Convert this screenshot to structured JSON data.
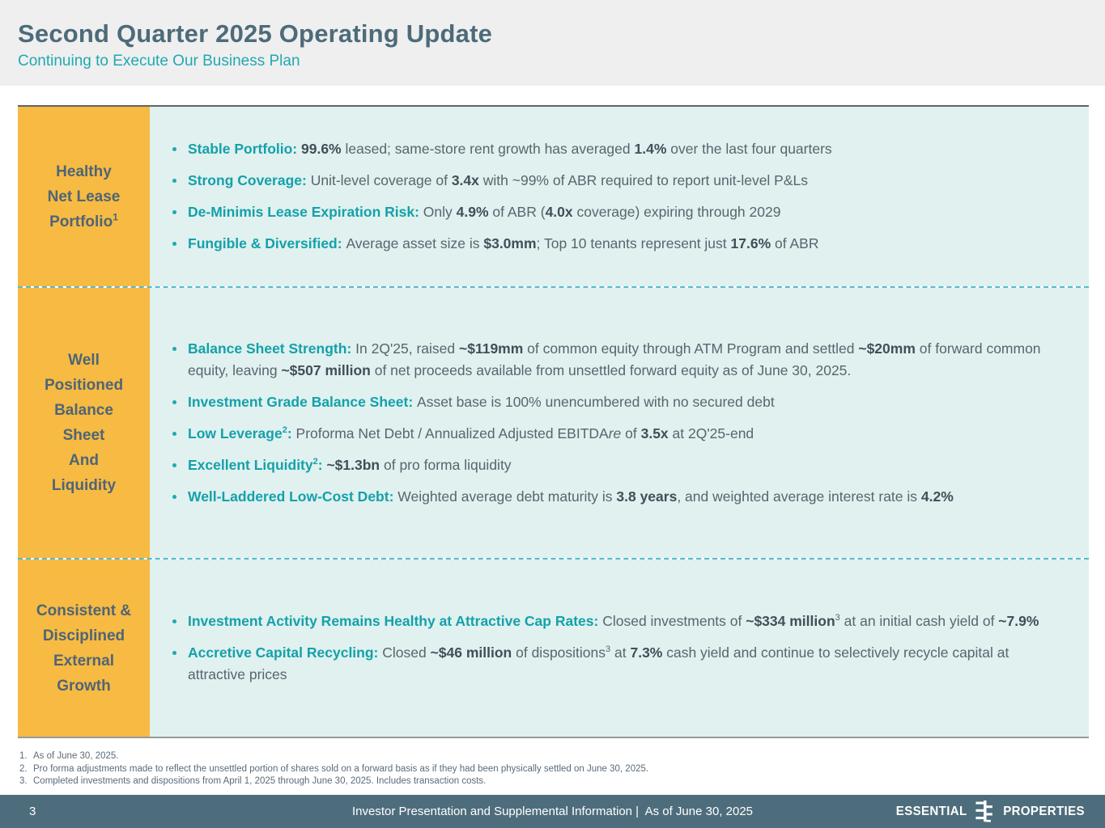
{
  "header": {
    "title": "Second Quarter 2025 Operating Update",
    "subtitle": "Continuing to Execute Our Business Plan"
  },
  "rows": [
    {
      "label_lines": [
        "Healthy",
        "Net Lease",
        "Portfolio"
      ],
      "label_sup": "1",
      "separator_above": false,
      "bullets": [
        {
          "segments": [
            {
              "style": "lead",
              "text": "Stable Portfolio: "
            },
            {
              "style": "bold",
              "text": "99.6%"
            },
            {
              "style": "normal",
              "text": " leased; same-store rent growth has averaged "
            },
            {
              "style": "bold",
              "text": "1.4%"
            },
            {
              "style": "normal",
              "text": " over the last four quarters"
            }
          ]
        },
        {
          "segments": [
            {
              "style": "lead",
              "text": "Strong Coverage: "
            },
            {
              "style": "normal",
              "text": "Unit-level coverage of "
            },
            {
              "style": "bold",
              "text": "3.4x"
            },
            {
              "style": "normal",
              "text": " with ~99% of ABR required to report unit-level P&Ls"
            }
          ]
        },
        {
          "segments": [
            {
              "style": "lead",
              "text": "De-Minimis Lease Expiration Risk: "
            },
            {
              "style": "normal",
              "text": "Only "
            },
            {
              "style": "bold",
              "text": "4.9%"
            },
            {
              "style": "normal",
              "text": " of ABR ("
            },
            {
              "style": "bold",
              "text": "4.0x"
            },
            {
              "style": "normal",
              "text": " coverage) expiring through 2029"
            }
          ]
        },
        {
          "segments": [
            {
              "style": "lead",
              "text": "Fungible & Diversified: "
            },
            {
              "style": "normal",
              "text": "Average asset size is "
            },
            {
              "style": "bold",
              "text": "$3.0mm"
            },
            {
              "style": "normal",
              "text": "; Top 10 tenants represent just "
            },
            {
              "style": "bold",
              "text": "17.6%"
            },
            {
              "style": "normal",
              "text": " of ABR"
            }
          ]
        }
      ]
    },
    {
      "label_lines": [
        "Well",
        "Positioned",
        "Balance",
        "Sheet",
        "And",
        "Liquidity"
      ],
      "label_sup": "",
      "separator_above": true,
      "bullets": [
        {
          "segments": [
            {
              "style": "lead",
              "text": "Balance Sheet Strength: "
            },
            {
              "style": "normal",
              "text": "In 2Q'25, raised "
            },
            {
              "style": "bold",
              "text": "~$119mm"
            },
            {
              "style": "normal",
              "text": " of common equity through ATM Program and settled "
            },
            {
              "style": "bold",
              "text": "~$20mm"
            },
            {
              "style": "normal",
              "text": " of forward common equity, leaving "
            },
            {
              "style": "bold",
              "text": "~$507 million"
            },
            {
              "style": "normal",
              "text": " of net proceeds available from unsettled forward equity as of June 30, 2025."
            }
          ]
        },
        {
          "segments": [
            {
              "style": "lead",
              "text": "Investment Grade Balance Sheet: "
            },
            {
              "style": "normal",
              "text": "Asset base is 100% unencumbered with no secured debt"
            }
          ]
        },
        {
          "segments": [
            {
              "style": "lead",
              "text": "Low Leverage"
            },
            {
              "style": "leadsup",
              "text": "2"
            },
            {
              "style": "lead",
              "text": ": "
            },
            {
              "style": "normal",
              "text": "Proforma Net Debt / Annualized Adjusted EBITDA"
            },
            {
              "style": "italic",
              "text": "re"
            },
            {
              "style": "normal",
              "text": " of "
            },
            {
              "style": "bold",
              "text": "3.5x"
            },
            {
              "style": "normal",
              "text": " at 2Q'25-end"
            }
          ]
        },
        {
          "segments": [
            {
              "style": "lead",
              "text": "Excellent Liquidity"
            },
            {
              "style": "leadsup",
              "text": "2"
            },
            {
              "style": "lead",
              "text": ": "
            },
            {
              "style": "bold",
              "text": "~$1.3bn"
            },
            {
              "style": "normal",
              "text": " of pro forma liquidity"
            }
          ]
        },
        {
          "segments": [
            {
              "style": "lead",
              "text": "Well-Laddered Low-Cost Debt: "
            },
            {
              "style": "normal",
              "text": "Weighted average debt maturity is "
            },
            {
              "style": "bold",
              "text": "3.8 years"
            },
            {
              "style": "normal",
              "text": ", and weighted average interest rate is "
            },
            {
              "style": "bold",
              "text": "4.2%"
            }
          ]
        }
      ]
    },
    {
      "label_lines": [
        "Consistent &",
        "Disciplined",
        "External",
        "Growth"
      ],
      "label_sup": "",
      "separator_above": true,
      "bullets": [
        {
          "segments": [
            {
              "style": "lead",
              "text": "Investment Activity Remains Healthy at Attractive Cap Rates: "
            },
            {
              "style": "normal",
              "text": "Closed investments of "
            },
            {
              "style": "bold",
              "text": "~$334 million"
            },
            {
              "style": "sup",
              "text": "3"
            },
            {
              "style": "normal",
              "text": " at an initial cash yield of "
            },
            {
              "style": "bold",
              "text": "~7.9%"
            }
          ]
        },
        {
          "segments": [
            {
              "style": "lead",
              "text": "Accretive Capital Recycling: "
            },
            {
              "style": "normal",
              "text": "Closed "
            },
            {
              "style": "bold",
              "text": "~$46 million"
            },
            {
              "style": "normal",
              "text": " of dispositions"
            },
            {
              "style": "sup",
              "text": "3"
            },
            {
              "style": "normal",
              "text": " at "
            },
            {
              "style": "bold",
              "text": "7.3%"
            },
            {
              "style": "normal",
              "text": " cash yield and continue to selectively recycle capital at attractive prices"
            }
          ]
        }
      ]
    }
  ],
  "footnotes": [
    {
      "num": "1.",
      "text": "As of June 30, 2025."
    },
    {
      "num": "2.",
      "text": "Pro forma adjustments made to reflect the unsettled portion of shares sold on a forward basis as if they had been physically settled on June 30, 2025."
    },
    {
      "num": "3.",
      "text": "Completed investments and dispositions from April 1, 2025 through June 30, 2025. Includes transaction costs."
    }
  ],
  "footer": {
    "page_number": "3",
    "caption": "Investor Presentation and Supplemental Information |  As of June 30, 2025",
    "logo_left": "ESSENTIAL",
    "logo_right": "PROPERTIES"
  },
  "colors": {
    "accent_teal": "#1FA9B2",
    "label_yellow": "#F7BA42",
    "content_bg": "#E0F1EF",
    "title_slate": "#4D6B7A",
    "body_text": "#5A646E",
    "footer_bg": "#4E6D7C",
    "dashed_separator": "#58B9CF"
  }
}
